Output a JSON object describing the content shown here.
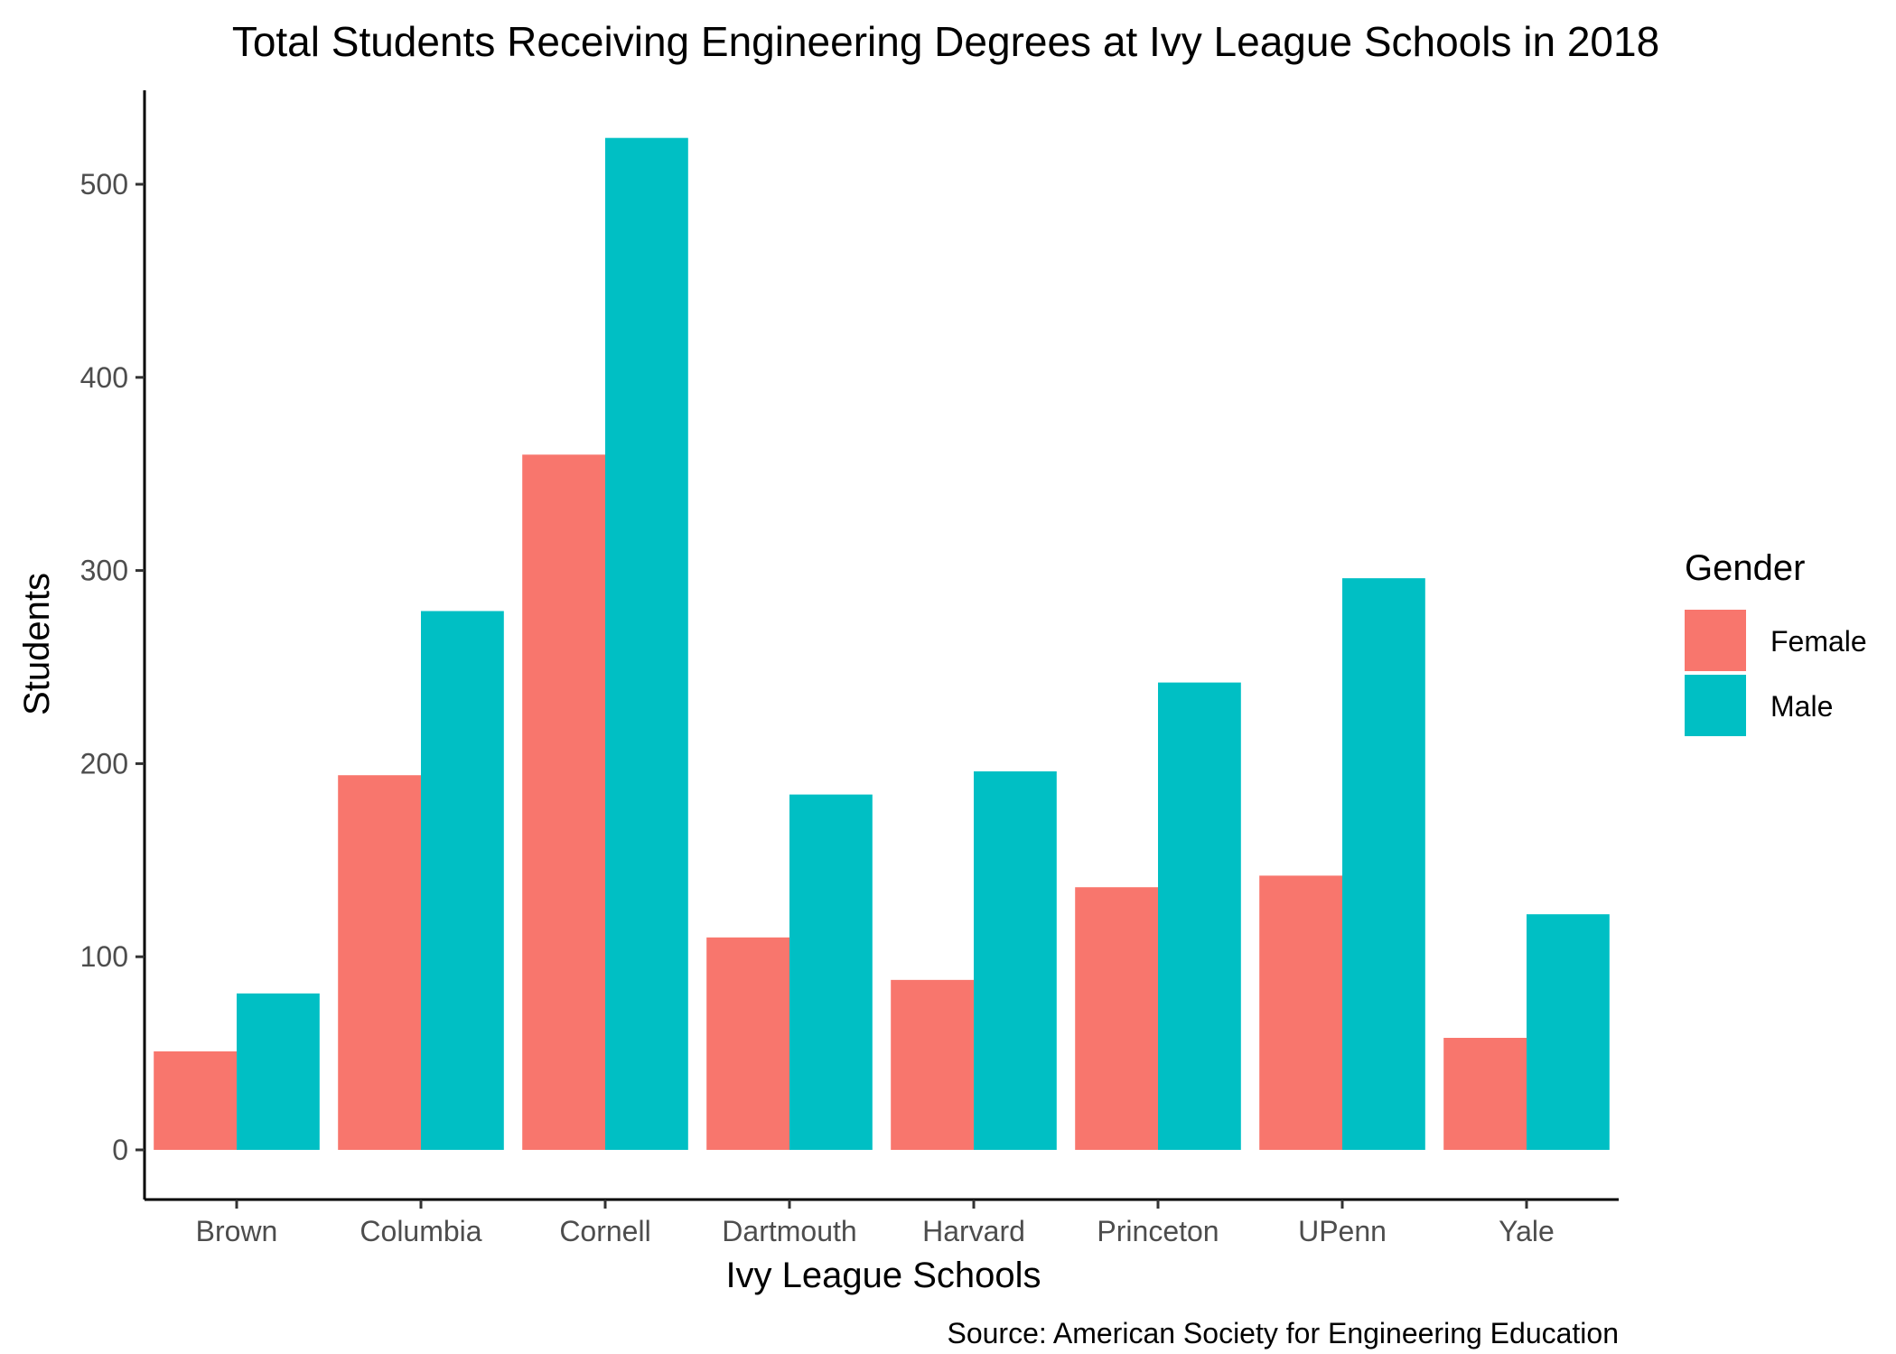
{
  "chart_data": {
    "type": "bar",
    "title": "Total Students Receiving Engineering Degrees at Ivy League Schools in 2018",
    "xlabel": "Ivy League Schools",
    "ylabel": "Students",
    "caption": "Source: American Society for Engineering Education",
    "categories": [
      "Brown",
      "Columbia",
      "Cornell",
      "Dartmouth",
      "Harvard",
      "Princeton",
      "UPenn",
      "Yale"
    ],
    "series": [
      {
        "name": "Female",
        "color": "#F8766D",
        "values": [
          51,
          194,
          360,
          110,
          88,
          136,
          142,
          58
        ]
      },
      {
        "name": "Male",
        "color": "#00BFC4",
        "values": [
          81,
          279,
          524,
          184,
          196,
          242,
          296,
          122
        ]
      }
    ],
    "ylim": [
      0,
      550
    ],
    "yticks": [
      0,
      100,
      200,
      300,
      400,
      500
    ],
    "grid": false,
    "legend": {
      "title": "Gender",
      "position": "right"
    }
  }
}
